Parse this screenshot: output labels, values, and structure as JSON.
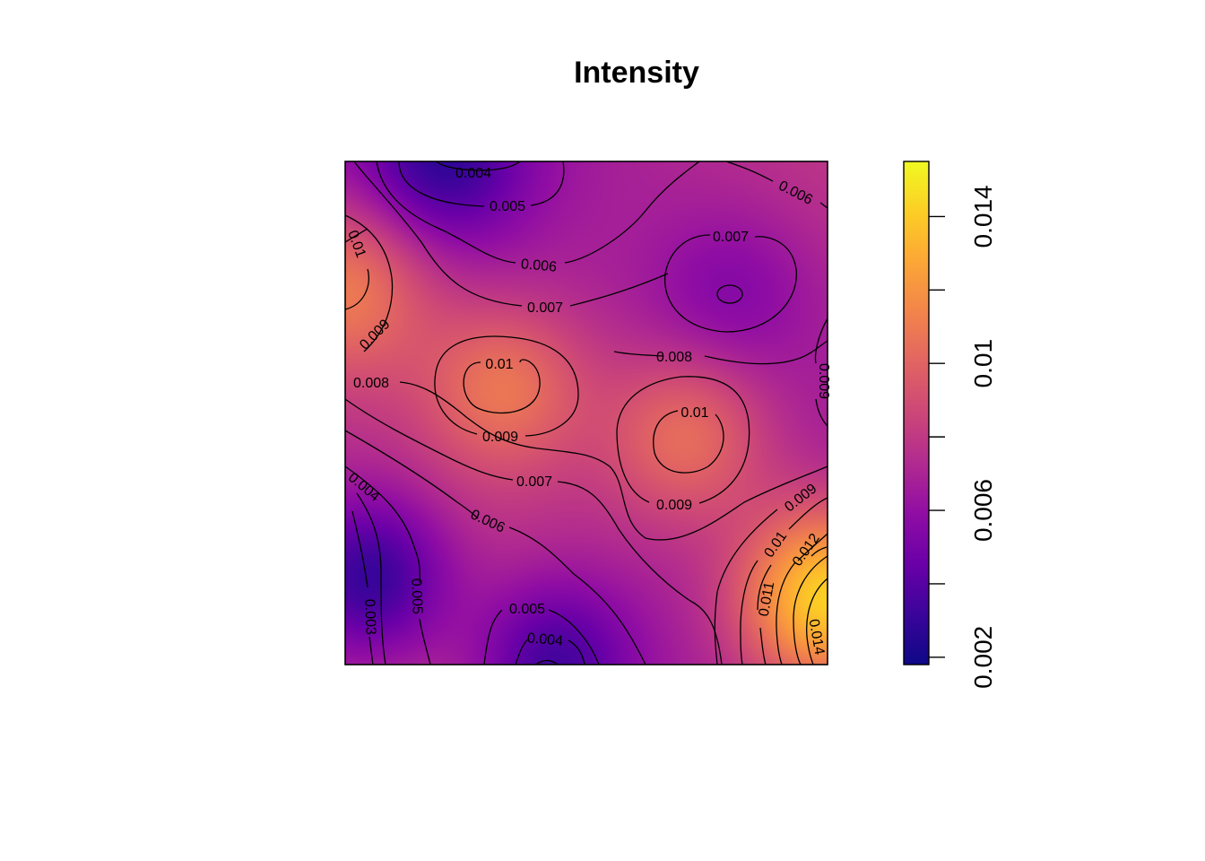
{
  "chart_data": {
    "type": "heatmap",
    "title": "Intensity",
    "xlabel": "",
    "ylabel": "",
    "colorbar": {
      "range": [
        0.0018,
        0.0155
      ],
      "tick_values": [
        0.002,
        0.004,
        0.006,
        0.008,
        0.01,
        0.012,
        0.014
      ],
      "tick_labels": [
        "0.002",
        "0.006",
        "0.01",
        "0.014"
      ],
      "colors": [
        "#0D0887",
        "#3B049A",
        "#6A00A8",
        "#900DA4",
        "#B12A90",
        "#CC4778",
        "#E16462",
        "#F2844B",
        "#FCA636",
        "#FCCE25",
        "#F0F921"
      ]
    },
    "contour_labels": [
      "0.004",
      "0.005",
      "0.006",
      "0.006",
      "0.007",
      "0.01",
      "0.009",
      "0.007",
      "0.008",
      "0.009",
      "0.008",
      "0.01",
      "0.009",
      "0.01",
      "0.009",
      "0.007",
      "0.004",
      "0.006",
      "0.009",
      "0.01",
      "0.012",
      "0.011",
      "0.005",
      "0.003",
      "0.005",
      "0.004",
      "0.014"
    ],
    "peaks": [
      {
        "x": 0.33,
        "y": 0.55,
        "value": 0.0105
      },
      {
        "x": 0.71,
        "y": 0.45,
        "value": 0.0105
      },
      {
        "x": 0.0,
        "y": 0.75,
        "value": 0.0112
      },
      {
        "x": 1.0,
        "y": 0.13,
        "value": 0.0152
      }
    ],
    "troughs": [
      {
        "x": 0.05,
        "y": 0.17,
        "value": 0.002
      },
      {
        "x": 0.43,
        "y": 0.0,
        "value": 0.0028
      },
      {
        "x": 0.2,
        "y": 1.0,
        "value": 0.0035
      },
      {
        "x": 0.8,
        "y": 0.74,
        "value": 0.0053
      }
    ]
  }
}
